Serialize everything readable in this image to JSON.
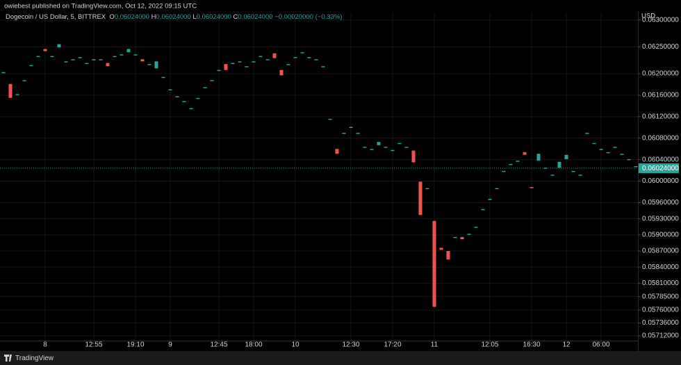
{
  "header": "owiebest published on TradingView.com, Oct 12, 2022 09:15 UTC",
  "footer": "TradingView",
  "chart_data": {
    "type": "candlestick",
    "axis_label": "USD",
    "legend": {
      "symbol": "Dogecoin / US Dollar, 5, BITTREX",
      "o_label": "O",
      "o": "0.06024000",
      "h_label": "H",
      "h": "0.06024000",
      "l_label": "L",
      "l": "0.06024000",
      "c_label": "C",
      "c": "0.06024000",
      "change": "−0.00020000 (−0.33%)"
    },
    "up_color": "#26a69a",
    "down_color": "#ef5350",
    "grid": true,
    "last_price": {
      "value": 0.06024,
      "label": "0.06024000"
    },
    "ylim": [
      0.05703,
      0.06314
    ],
    "yticks": [
      {
        "value": 0.063,
        "label": "0.06300000"
      },
      {
        "value": 0.0625,
        "label": "0.06250000"
      },
      {
        "value": 0.062,
        "label": "0.06200000"
      },
      {
        "value": 0.0616,
        "label": "0.06160000"
      },
      {
        "value": 0.0612,
        "label": "0.06120000"
      },
      {
        "value": 0.0608,
        "label": "0.06080000"
      },
      {
        "value": 0.0604,
        "label": "0.06040000"
      },
      {
        "value": 0.06,
        "label": "0.06000000"
      },
      {
        "value": 0.0596,
        "label": "0.05960000"
      },
      {
        "value": 0.0593,
        "label": "0.05930000"
      },
      {
        "value": 0.059,
        "label": "0.05900000"
      },
      {
        "value": 0.0587,
        "label": "0.05870000"
      },
      {
        "value": 0.0584,
        "label": "0.05840000"
      },
      {
        "value": 0.0581,
        "label": "0.05810000"
      },
      {
        "value": 0.05785,
        "label": "0.05785000"
      },
      {
        "value": 0.0576,
        "label": "0.05760000"
      },
      {
        "value": 0.05736,
        "label": "0.05736000"
      },
      {
        "value": 0.05712,
        "label": "0.05712000"
      }
    ],
    "categories": [
      null,
      null,
      null,
      null,
      null,
      null,
      "8",
      null,
      null,
      null,
      null,
      null,
      null,
      "12:55",
      null,
      null,
      null,
      null,
      null,
      "19:10",
      null,
      null,
      null,
      null,
      "9",
      null,
      null,
      null,
      null,
      null,
      null,
      "12:45",
      null,
      null,
      null,
      null,
      "18:00",
      null,
      null,
      null,
      null,
      null,
      "10",
      null,
      null,
      null,
      null,
      null,
      null,
      null,
      "12:30",
      null,
      null,
      null,
      null,
      null,
      "17:20",
      null,
      null,
      null,
      null,
      null,
      "11",
      null,
      null,
      null,
      null,
      null,
      null,
      null,
      "12:05",
      null,
      null,
      null,
      null,
      null,
      "16:30",
      null,
      null,
      null,
      null,
      "12",
      null,
      null,
      null,
      null,
      "06:00",
      null,
      null,
      null,
      null,
      null
    ],
    "open": [
      0.06203,
      0.06181,
      0.06162,
      0.06188,
      0.06216,
      0.06233,
      0.06246,
      0.06233,
      0.06249,
      0.06223,
      0.06227,
      0.06231,
      0.0622,
      0.06227,
      0.06227,
      0.0622,
      0.06233,
      0.06236,
      0.0624,
      0.06236,
      0.06227,
      0.06218,
      0.0621,
      0.06194,
      0.06171,
      0.06158,
      0.06149,
      0.06136,
      0.06155,
      0.06175,
      0.06188,
      0.06207,
      0.06218,
      0.0622,
      0.06223,
      0.06214,
      0.06223,
      0.06233,
      0.06227,
      0.06238,
      0.06207,
      0.06218,
      0.06231,
      0.0624,
      0.06231,
      0.06227,
      0.06214,
      0.06116,
      0.0606,
      0.0609,
      0.06101,
      0.0609,
      0.06064,
      0.0606,
      0.06067,
      0.06064,
      0.06058,
      0.06071,
      0.06064,
      0.06057,
      0.05999,
      0.05987,
      0.05926,
      0.05876,
      0.0587,
      0.05896,
      0.05896,
      0.05902,
      0.05915,
      0.05948,
      0.05967,
      0.05987,
      0.06019,
      0.06032,
      0.06038,
      0.06054,
      0.05989,
      0.06038,
      0.06025,
      0.06012,
      0.06025,
      0.06041,
      0.06019,
      0.06012,
      0.0609,
      0.06071,
      0.0606,
      0.06054,
      0.06064,
      0.06051,
      0.06041,
      0.06028
    ],
    "close": [
      0.06203,
      0.06155,
      0.06162,
      0.06188,
      0.06216,
      0.06233,
      0.06242,
      0.06233,
      0.06255,
      0.06223,
      0.06227,
      0.06231,
      0.0622,
      0.06227,
      0.06227,
      0.06214,
      0.06233,
      0.06236,
      0.06246,
      0.06236,
      0.06223,
      0.06218,
      0.06223,
      0.06194,
      0.06171,
      0.06158,
      0.06149,
      0.06136,
      0.06155,
      0.06175,
      0.06188,
      0.06207,
      0.06207,
      0.0622,
      0.06223,
      0.06214,
      0.06223,
      0.06233,
      0.06227,
      0.06229,
      0.06197,
      0.06218,
      0.06231,
      0.0624,
      0.06231,
      0.06227,
      0.06214,
      0.06116,
      0.06051,
      0.0609,
      0.06101,
      0.0609,
      0.06064,
      0.0606,
      0.06073,
      0.06064,
      0.06058,
      0.06071,
      0.06064,
      0.06035,
      0.05937,
      0.05987,
      0.05766,
      0.05872,
      0.05854,
      0.05896,
      0.05892,
      0.05902,
      0.05915,
      0.05948,
      0.05967,
      0.05987,
      0.06019,
      0.06032,
      0.06038,
      0.06049,
      0.05987,
      0.06051,
      0.06025,
      0.06012,
      0.06036,
      0.06049,
      0.06019,
      0.06012,
      0.0609,
      0.06071,
      0.0606,
      0.06054,
      0.06064,
      0.06051,
      0.06041,
      0.06028
    ]
  }
}
